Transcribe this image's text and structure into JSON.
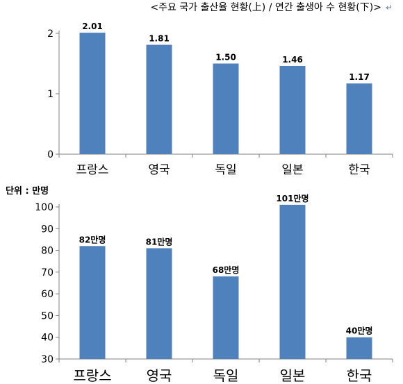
{
  "title": "<주요 국가 출산율 현황(上) / 연간 출생아 수 현황(下)>",
  "return_mark": "↵",
  "chart_data": [
    {
      "type": "bar",
      "title": "주요 국가 출산율 현황",
      "categories": [
        "프랑스",
        "영국",
        "독일",
        "일본",
        "한국"
      ],
      "values": [
        2.01,
        1.81,
        1.5,
        1.46,
        1.17
      ],
      "data_labels": [
        "2.01",
        "1.81",
        "1.50",
        "1.46",
        "1.17"
      ],
      "ylim": [
        0,
        2
      ],
      "yticks": [
        0,
        1,
        2
      ],
      "color": "#4f81bd"
    },
    {
      "type": "bar",
      "title": "연간 출생아 수 현황",
      "unit_label": "단위 : 만명",
      "categories": [
        "프랑스",
        "영국",
        "독일",
        "일본",
        "한국"
      ],
      "values": [
        82,
        81,
        68,
        101,
        40
      ],
      "data_labels": [
        "82만명",
        "81만명",
        "68만명",
        "101만명",
        "40만명"
      ],
      "ylim": [
        30,
        100
      ],
      "yticks": [
        30,
        40,
        50,
        60,
        70,
        80,
        90,
        100
      ],
      "color": "#4f81bd"
    }
  ]
}
